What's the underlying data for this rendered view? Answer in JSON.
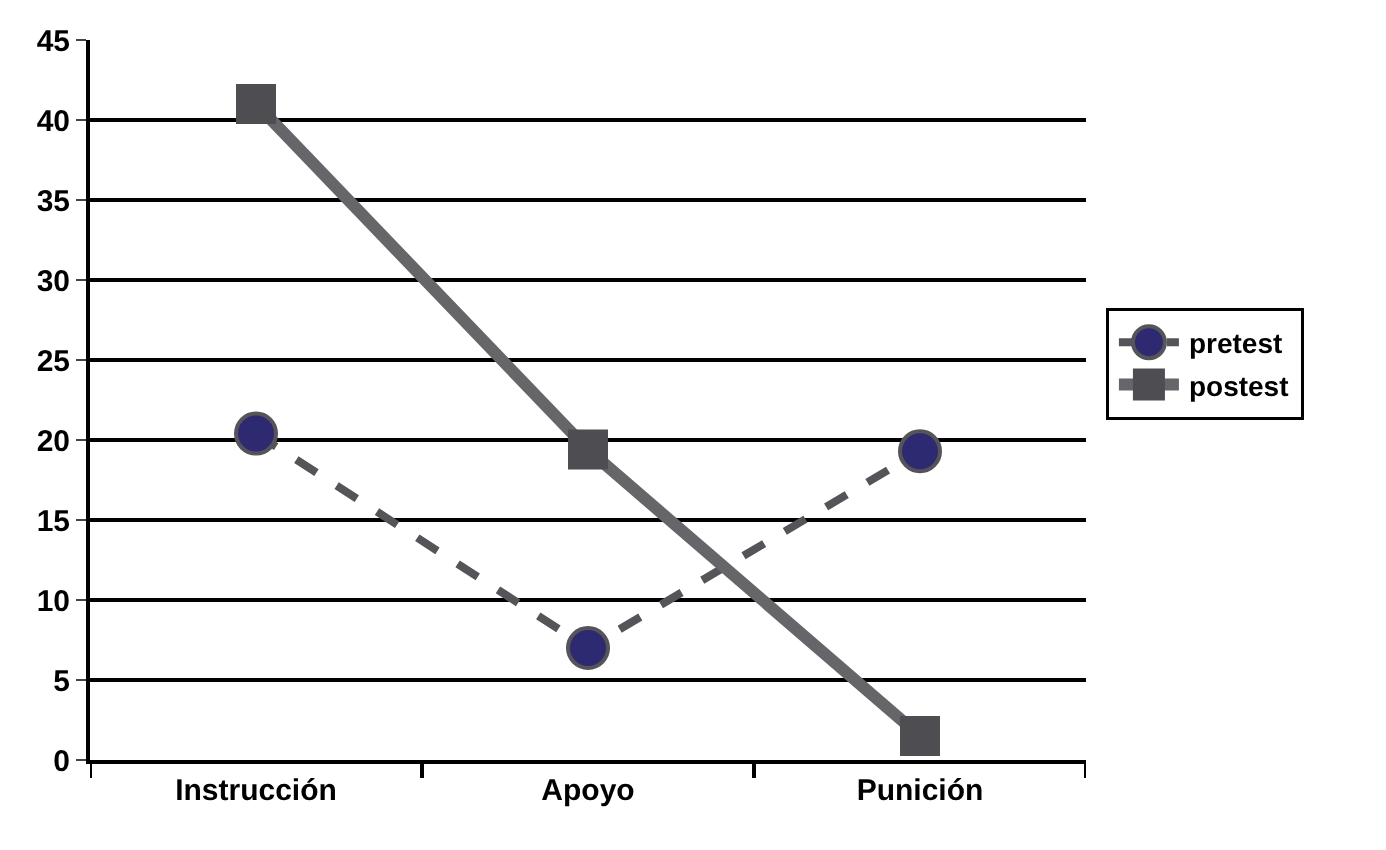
{
  "chart_data": {
    "type": "line",
    "categories": [
      "Instrucción",
      "Apoyo",
      "Punición"
    ],
    "series": [
      {
        "name": "pretest",
        "color": "#555559",
        "colors": [
          "#2e2a72",
          "#2e2a72",
          "#2e2a72"
        ],
        "marker": "circle",
        "line_style": "dashed",
        "values": [
          20.4,
          7.0,
          19.3
        ]
      },
      {
        "name": "postest",
        "color": "#66666a",
        "colors": [
          "#4d4d52",
          "#4d4d52",
          "#4d4d52"
        ],
        "marker": "square",
        "line_style": "solid",
        "values": [
          41.0,
          19.4,
          1.5
        ]
      }
    ],
    "ylim": [
      0,
      45
    ],
    "yticks": [
      0,
      5,
      10,
      15,
      20,
      25,
      30,
      35,
      40,
      45
    ],
    "grid": "y",
    "legend": "right"
  }
}
